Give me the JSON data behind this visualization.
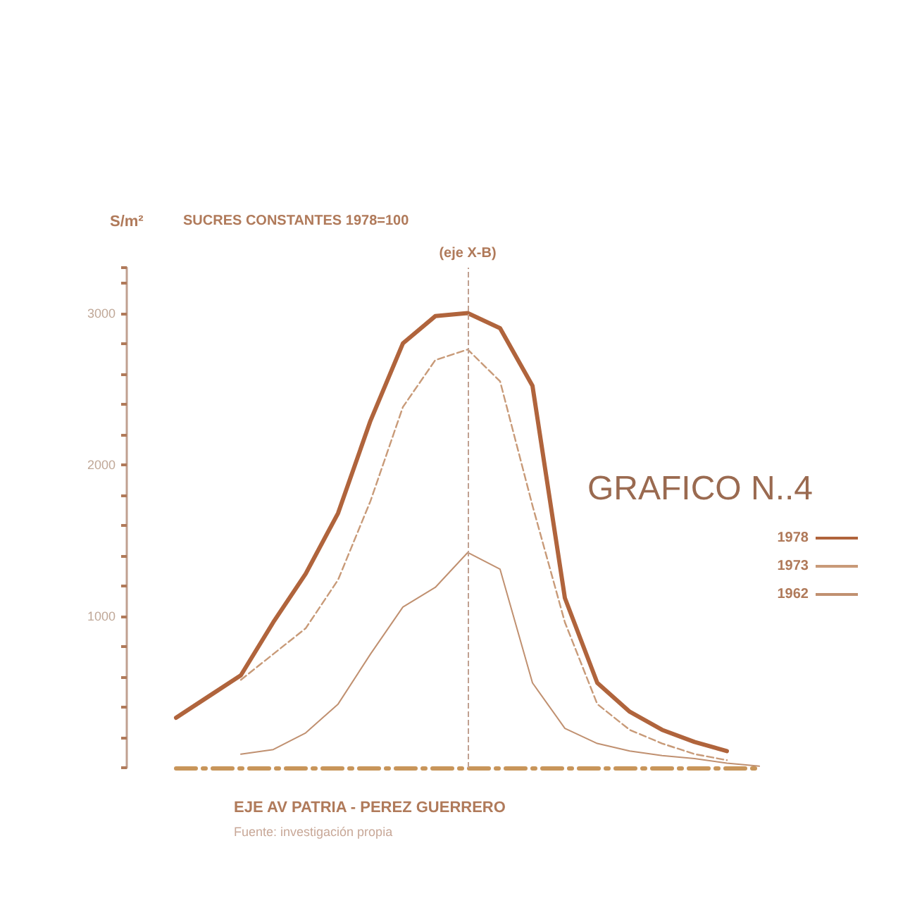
{
  "chart_data": {
    "type": "line",
    "title": "GRAFICO N..4",
    "subtitle": "SUCRES CONSTANTES 1978=100",
    "ylabel": "S/m²",
    "xlabel": "EJE AV PATRIA - PEREZ GUERRERO",
    "annotations": [
      "(eje X-B)",
      "Fuente: investigación propia"
    ],
    "categories": [
      null,
      null,
      null,
      null,
      null,
      null,
      null,
      null,
      null,
      null,
      null,
      null,
      null,
      null,
      null,
      null,
      null,
      null,
      null
    ],
    "series": [
      {
        "name": "1978",
        "color": "#b0643c",
        "line_style": "solid",
        "values": [
          330,
          470,
          610,
          960,
          1280,
          1680,
          2290,
          2800,
          2980,
          3000,
          2900,
          2520,
          1120,
          560,
          370,
          250,
          170,
          110,
          null
        ]
      },
      {
        "name": "1973",
        "color": "#c89a78",
        "line_style": "dashed",
        "values": [
          null,
          null,
          580,
          750,
          920,
          1240,
          1760,
          2380,
          2690,
          2760,
          2550,
          1730,
          960,
          420,
          250,
          160,
          90,
          50,
          null
        ]
      },
      {
        "name": "1962",
        "color": "#c09070",
        "line_style": "solid",
        "values": [
          null,
          null,
          90,
          120,
          230,
          420,
          750,
          1060,
          1190,
          1420,
          1310,
          560,
          260,
          160,
          110,
          80,
          60,
          30,
          10
        ]
      }
    ],
    "ylim": [
      0,
      3300
    ],
    "yticks": [
      1000,
      2000,
      3000
    ],
    "grid": false,
    "legend": "right",
    "marker": "none"
  }
}
